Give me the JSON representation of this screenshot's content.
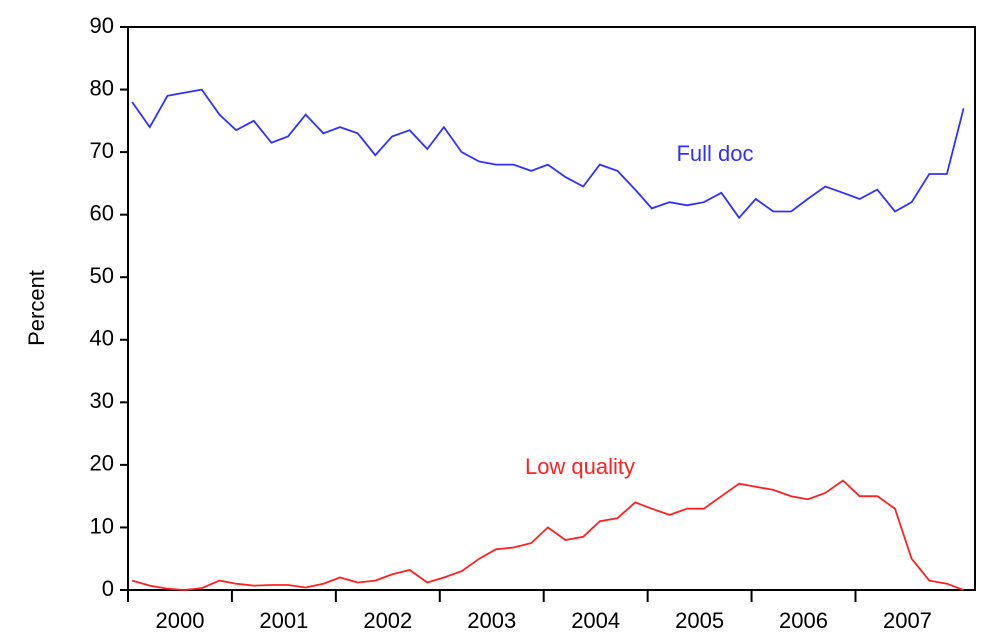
{
  "chart_data": {
    "type": "line",
    "y_label": "Percent",
    "x": [
      2000.04,
      2000.21,
      2000.38,
      2000.54,
      2000.71,
      2000.88,
      2001.04,
      2001.21,
      2001.38,
      2001.54,
      2001.71,
      2001.88,
      2002.04,
      2002.21,
      2002.38,
      2002.54,
      2002.71,
      2002.88,
      2003.04,
      2003.21,
      2003.38,
      2003.54,
      2003.71,
      2003.88,
      2004.04,
      2004.21,
      2004.38,
      2004.54,
      2004.71,
      2004.88,
      2005.04,
      2005.21,
      2005.38,
      2005.54,
      2005.71,
      2005.88,
      2006.04,
      2006.21,
      2006.38,
      2006.54,
      2006.71,
      2006.88,
      2007.04,
      2007.21,
      2007.38,
      2007.54,
      2007.71,
      2007.88,
      2008.04
    ],
    "series": [
      {
        "name": "Full doc",
        "color": "#3030ff",
        "values": [
          78,
          74,
          79,
          79.5,
          80,
          76,
          73.5,
          75,
          71.5,
          72.5,
          76,
          73,
          74,
          73,
          69.5,
          72.5,
          73.5,
          70.5,
          74,
          70,
          68.5,
          68,
          68,
          67,
          68,
          66,
          64.5,
          68,
          67,
          64,
          61,
          62,
          61.5,
          62,
          63.5,
          59.5,
          62.5,
          60.5,
          60.5,
          62.5,
          64.5,
          63.5,
          62.5,
          64,
          60.5,
          62,
          66.5,
          66.5,
          77
        ]
      },
      {
        "name": "Low quality",
        "color": "#ff2020",
        "values": [
          1.5,
          0.7,
          0.2,
          0,
          0.3,
          1.5,
          1,
          0.7,
          0.8,
          0.8,
          0.4,
          1,
          2,
          1.2,
          1.5,
          2.5,
          3.2,
          1.2,
          2,
          3,
          5,
          6.5,
          6.8,
          7.5,
          10,
          8,
          8.5,
          11,
          11.5,
          14,
          13,
          12,
          13,
          13,
          15,
          17,
          16.5,
          16,
          15,
          14.5,
          15.5,
          17.5,
          15,
          15,
          13,
          5,
          1.5,
          1,
          0
        ]
      }
    ],
    "xlim": [
      2000,
      2008.15
    ],
    "xticks": [
      2000,
      2001,
      2002,
      2003,
      2004,
      2005,
      2006,
      2007
    ],
    "ylim": [
      0,
      90
    ],
    "yticks": [
      0,
      10,
      20,
      30,
      40,
      50,
      60,
      70,
      80,
      90
    ],
    "grid": false
  }
}
